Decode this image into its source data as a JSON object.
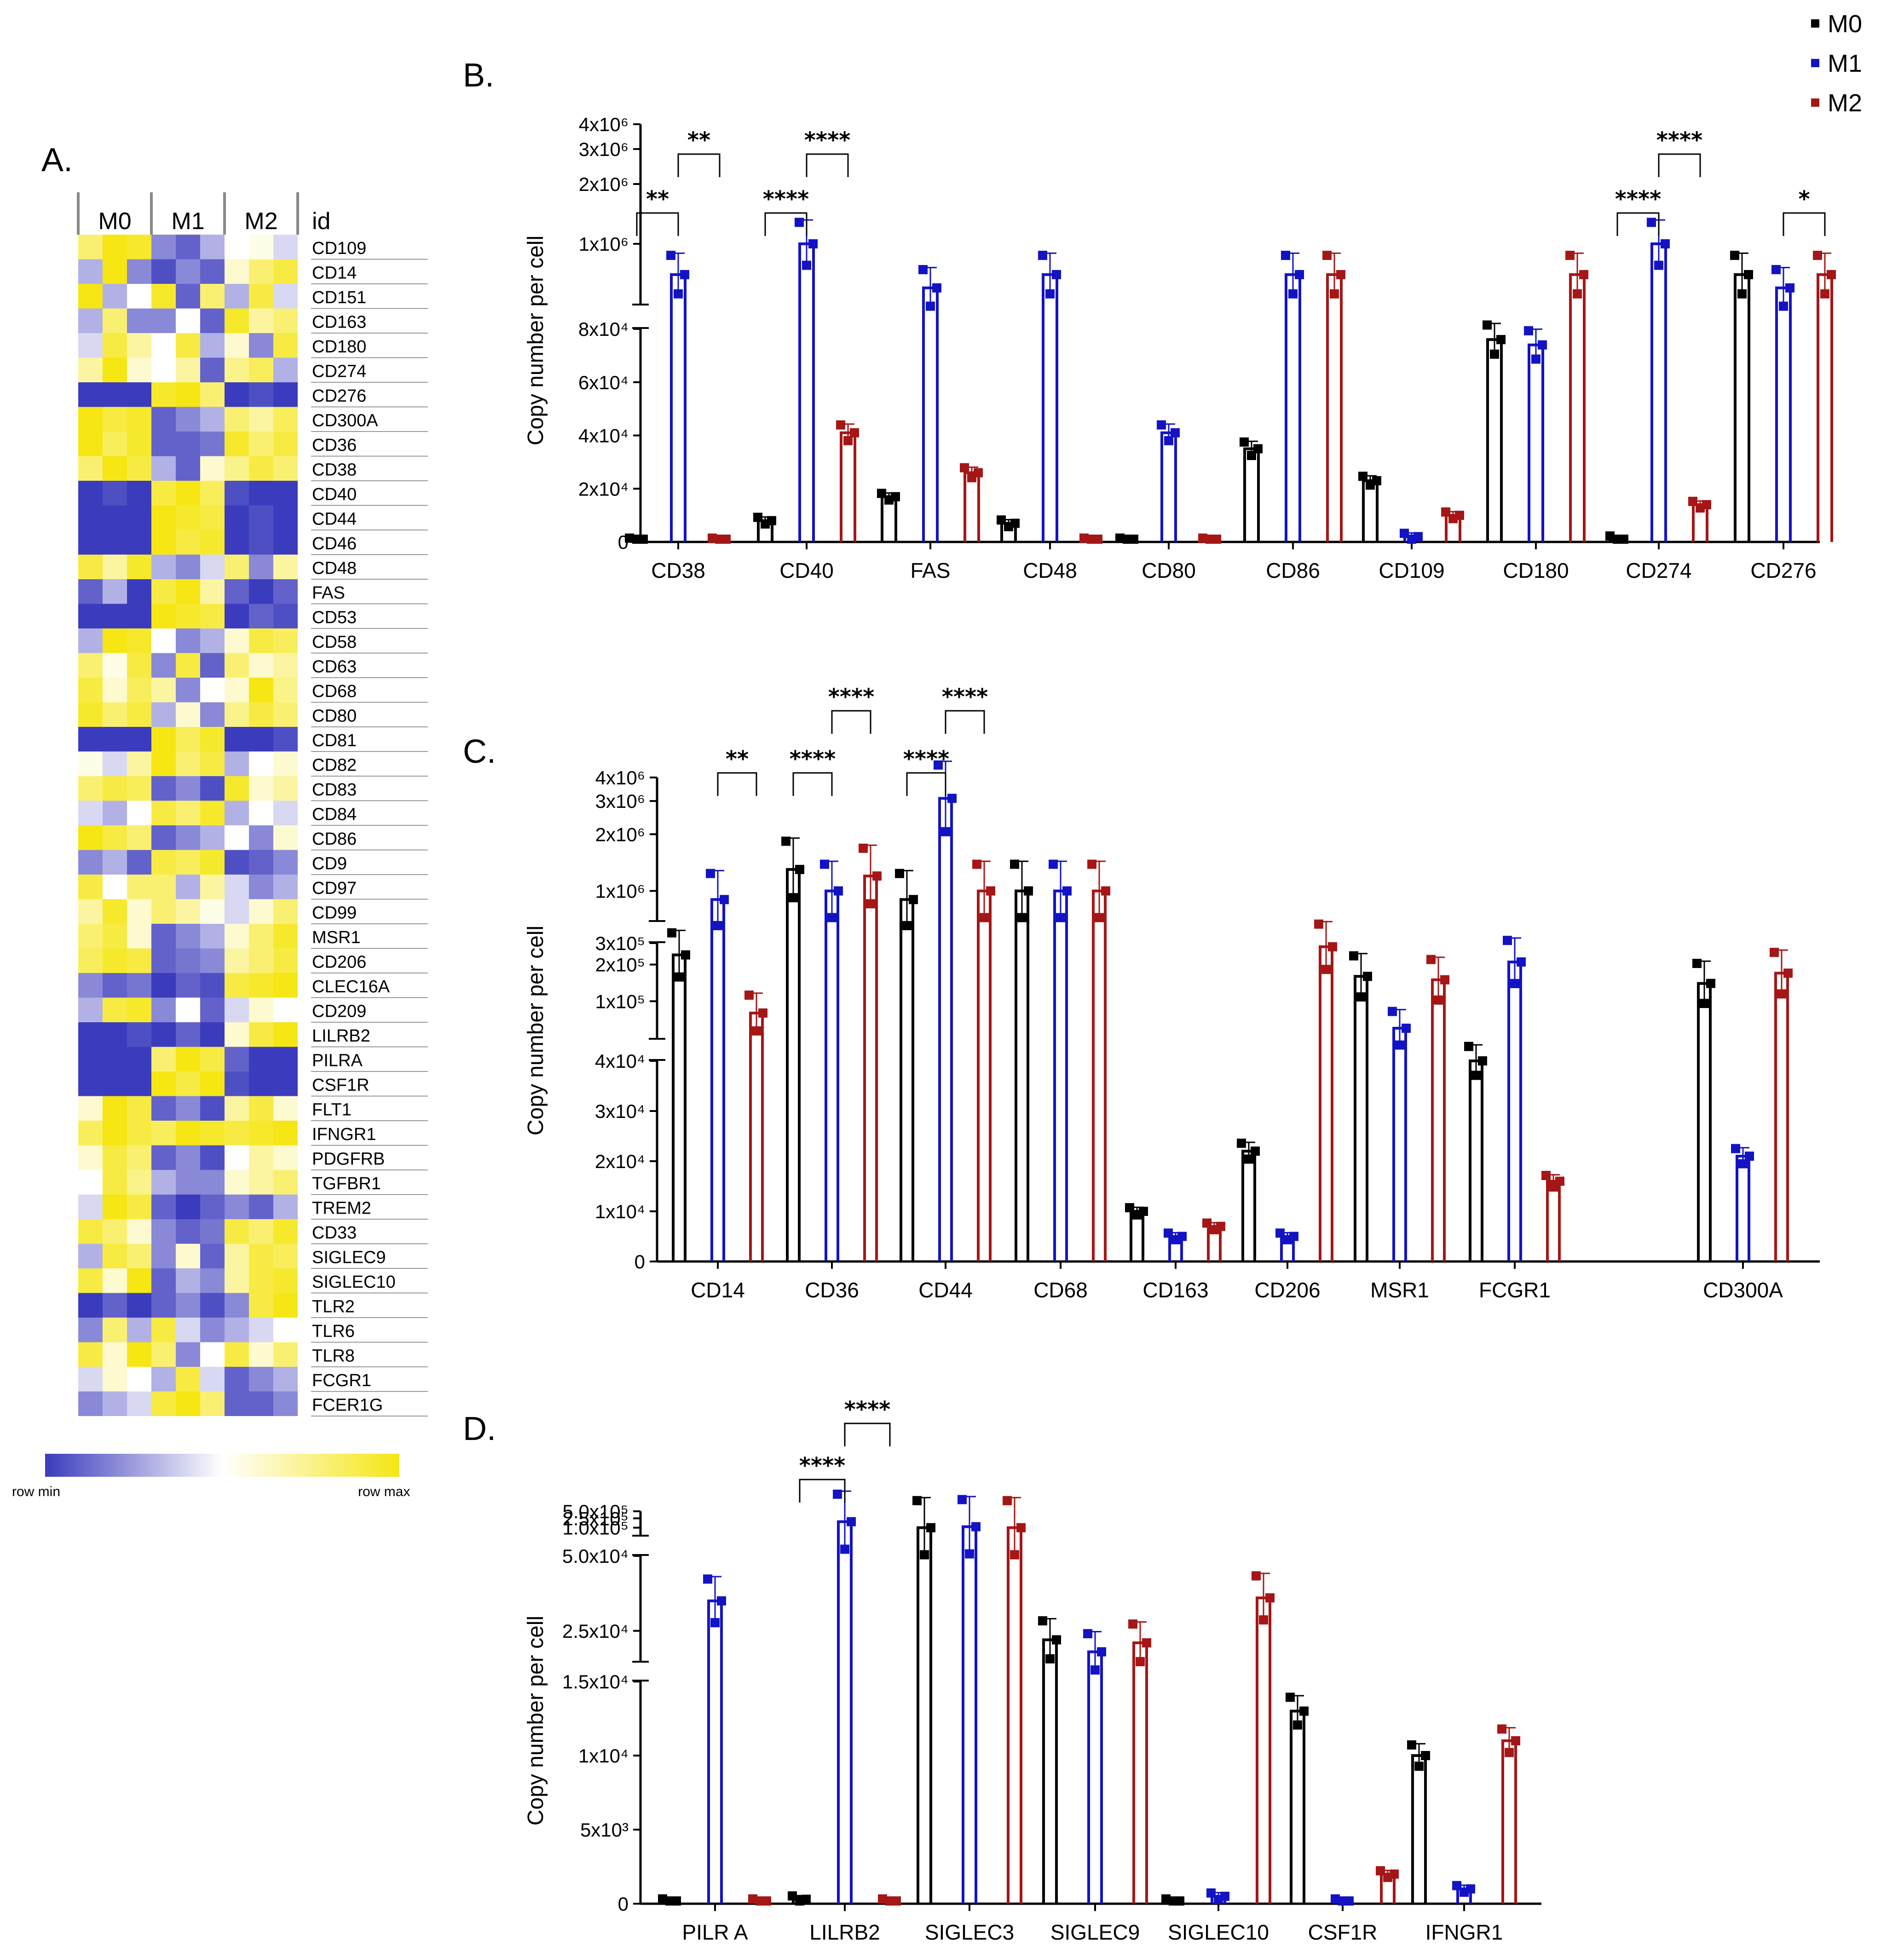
{
  "legend": [
    {
      "name": "M0",
      "color": "#000000"
    },
    {
      "name": "M1",
      "color": "#1313c4"
    },
    {
      "name": "M2",
      "color": "#a51616"
    }
  ],
  "heatmap": {
    "panel_label": "A.",
    "groups": [
      "M0",
      "M1",
      "M2"
    ],
    "id_header": "id",
    "legend_min": "row min",
    "legend_max": "row max",
    "colors": {
      "min": "#3b3bbd",
      "mid": "#ffffff",
      "max": "#f5e614"
    },
    "genes": [
      "CD109",
      "CD14",
      "CD151",
      "CD163",
      "CD180",
      "CD274",
      "CD276",
      "CD300A",
      "CD36",
      "CD38",
      "CD40",
      "CD44",
      "CD46",
      "CD48",
      "FAS",
      "CD53",
      "CD58",
      "CD63",
      "CD68",
      "CD80",
      "CD81",
      "CD82",
      "CD83",
      "CD84",
      "CD86",
      "CD9",
      "CD97",
      "CD99",
      "MSR1",
      "CD206",
      "CLEC16A",
      "CD209",
      "LILRB2",
      "PILRA",
      "CSF1R",
      "FLT1",
      "IFNGR1",
      "PDGFRB",
      "TGFBR1",
      "TREM2",
      "CD33",
      "SIGLEC9",
      "SIGLEC10",
      "TLR2",
      "TLR6",
      "TLR8",
      "FCGR1",
      "FCER1G"
    ],
    "values": [
      [
        0.8,
        1.0,
        0.95,
        0.2,
        0.1,
        0.3,
        0.5,
        0.55,
        0.4
      ],
      [
        0.3,
        1.0,
        0.2,
        0.05,
        0.2,
        0.1,
        0.6,
        0.8,
        0.9
      ],
      [
        1.0,
        0.3,
        0.5,
        0.95,
        0.1,
        0.8,
        0.3,
        0.9,
        0.4
      ],
      [
        0.3,
        0.8,
        0.2,
        0.2,
        0.5,
        0.1,
        0.95,
        0.7,
        0.8
      ],
      [
        0.4,
        0.9,
        0.7,
        0.5,
        0.9,
        0.3,
        0.6,
        0.2,
        0.9
      ],
      [
        0.7,
        1.0,
        0.6,
        0.5,
        0.7,
        0.1,
        0.75,
        0.85,
        0.3
      ],
      [
        0.0,
        0.0,
        0.0,
        0.95,
        1.0,
        0.8,
        0.0,
        0.05,
        0.0
      ],
      [
        1.0,
        0.9,
        0.95,
        0.1,
        0.2,
        0.3,
        0.8,
        0.7,
        0.85
      ],
      [
        1.0,
        0.85,
        0.95,
        0.1,
        0.1,
        0.15,
        0.95,
        0.8,
        0.9
      ],
      [
        0.8,
        1.0,
        0.9,
        0.3,
        0.1,
        0.6,
        0.75,
        0.9,
        0.8
      ],
      [
        0.0,
        0.05,
        0.0,
        0.9,
        1.0,
        0.85,
        0.05,
        0.0,
        0.0
      ],
      [
        0.0,
        0.0,
        0.0,
        1.0,
        0.95,
        0.9,
        0.0,
        0.05,
        0.0
      ],
      [
        0.0,
        0.0,
        0.0,
        1.0,
        0.9,
        0.95,
        0.0,
        0.05,
        0.0
      ],
      [
        0.9,
        0.7,
        0.95,
        0.3,
        0.2,
        0.4,
        0.8,
        0.2,
        0.7
      ],
      [
        0.1,
        0.3,
        0.0,
        0.9,
        1.0,
        0.7,
        0.1,
        0.0,
        0.1
      ],
      [
        0.0,
        0.0,
        0.0,
        1.0,
        0.95,
        0.9,
        0.0,
        0.1,
        0.05
      ],
      [
        0.3,
        1.0,
        0.95,
        0.5,
        0.2,
        0.3,
        0.6,
        0.9,
        0.85
      ],
      [
        0.8,
        0.55,
        0.9,
        0.2,
        0.9,
        0.1,
        0.8,
        0.6,
        0.7
      ],
      [
        0.9,
        0.6,
        0.85,
        0.7,
        0.2,
        0.5,
        0.6,
        1.0,
        0.75
      ],
      [
        0.95,
        0.8,
        0.9,
        0.3,
        0.6,
        0.2,
        0.75,
        0.9,
        0.8
      ],
      [
        0.0,
        0.0,
        0.0,
        1.0,
        0.85,
        0.95,
        0.0,
        0.0,
        0.05
      ],
      [
        0.55,
        0.4,
        0.7,
        1.0,
        0.8,
        0.9,
        0.3,
        0.5,
        0.6
      ],
      [
        0.8,
        0.9,
        0.85,
        0.1,
        0.2,
        0.05,
        0.95,
        0.6,
        0.7
      ],
      [
        0.4,
        0.3,
        0.5,
        0.9,
        0.8,
        0.95,
        0.3,
        0.5,
        0.4
      ],
      [
        1.0,
        0.9,
        0.8,
        0.1,
        0.2,
        0.3,
        0.5,
        0.2,
        0.6
      ],
      [
        0.2,
        0.3,
        0.1,
        0.9,
        0.85,
        0.95,
        0.05,
        0.1,
        0.2
      ],
      [
        0.9,
        0.5,
        0.8,
        0.8,
        0.3,
        0.7,
        0.4,
        0.2,
        0.3
      ],
      [
        0.7,
        0.95,
        0.6,
        0.8,
        0.7,
        0.55,
        0.4,
        0.6,
        0.8
      ],
      [
        0.8,
        0.9,
        0.6,
        0.1,
        0.2,
        0.3,
        0.6,
        0.8,
        0.95
      ],
      [
        0.85,
        0.95,
        0.9,
        0.1,
        0.15,
        0.2,
        0.7,
        0.8,
        0.9
      ],
      [
        0.2,
        0.1,
        0.15,
        0.0,
        0.1,
        0.05,
        0.9,
        0.95,
        1.0
      ],
      [
        0.3,
        0.9,
        0.95,
        0.2,
        0.5,
        0.1,
        0.4,
        0.6,
        0.5
      ],
      [
        0.0,
        0.0,
        0.05,
        0.0,
        0.1,
        0.0,
        0.6,
        0.9,
        1.0
      ],
      [
        0.0,
        0.0,
        0.0,
        0.8,
        1.0,
        0.9,
        0.1,
        0.0,
        0.0
      ],
      [
        0.0,
        0.0,
        0.0,
        1.0,
        0.9,
        1.0,
        0.05,
        0.0,
        0.0
      ],
      [
        0.6,
        1.0,
        0.9,
        0.1,
        0.2,
        0.05,
        0.7,
        0.9,
        0.6
      ],
      [
        0.85,
        1.0,
        0.9,
        0.85,
        1.0,
        0.95,
        0.9,
        0.95,
        1.0
      ],
      [
        0.6,
        0.9,
        0.8,
        0.1,
        0.2,
        0.05,
        0.5,
        0.7,
        0.6
      ],
      [
        0.5,
        0.9,
        0.75,
        0.3,
        0.2,
        0.2,
        0.6,
        0.7,
        0.8
      ],
      [
        0.4,
        1.0,
        0.9,
        0.1,
        0.0,
        0.1,
        0.2,
        0.1,
        0.3
      ],
      [
        0.9,
        0.8,
        0.6,
        0.2,
        0.1,
        0.15,
        0.9,
        0.8,
        0.95
      ],
      [
        0.3,
        0.9,
        0.8,
        0.2,
        0.6,
        0.1,
        0.7,
        0.9,
        0.85
      ],
      [
        0.9,
        0.6,
        1.0,
        0.1,
        0.3,
        0.2,
        0.7,
        0.9,
        0.95
      ],
      [
        0.0,
        0.1,
        0.0,
        0.1,
        0.2,
        0.05,
        0.2,
        0.9,
        1.0
      ],
      [
        0.2,
        0.8,
        0.3,
        0.9,
        0.4,
        0.2,
        0.3,
        0.4,
        0.5
      ],
      [
        0.9,
        0.6,
        1.0,
        0.8,
        0.2,
        0.5,
        0.9,
        0.6,
        0.8
      ],
      [
        0.4,
        0.6,
        0.5,
        0.3,
        0.9,
        0.4,
        0.1,
        0.2,
        0.3
      ],
      [
        0.2,
        0.3,
        0.4,
        0.9,
        1.0,
        0.8,
        0.1,
        0.1,
        0.2
      ]
    ]
  },
  "chart_data": [
    {
      "panel": "B.",
      "type": "bar",
      "ylabel": "Copy number per cell",
      "yaxis_segments": [
        {
          "range": [
            0,
            80000
          ],
          "ticks": [
            "0",
            "2x10⁴",
            "4x10⁴",
            "6x10⁴",
            "8x10⁴"
          ],
          "tick_values": [
            0,
            20000,
            40000,
            60000,
            80000
          ]
        },
        {
          "range": [
            500000,
            4000000
          ],
          "ticks": [
            "1x10⁶",
            "2x10⁶",
            "3x10⁶",
            "4x10⁶"
          ],
          "tick_values": [
            1000000,
            2000000,
            3000000,
            4000000
          ]
        }
      ],
      "categories": [
        "CD38",
        "CD40",
        "FAS",
        "CD48",
        "CD80",
        "CD86",
        "CD109",
        "CD180",
        "CD274",
        "CD276"
      ],
      "series": [
        {
          "name": "M0",
          "values": [
            200,
            8000,
            17000,
            7000,
            200,
            35000,
            23000,
            76000,
            1000,
            700000
          ]
        },
        {
          "name": "M1",
          "values": [
            700000,
            1000000,
            600000,
            700000,
            41000,
            700000,
            2000,
            74000,
            1000000,
            600000
          ]
        },
        {
          "name": "M2",
          "values": [
            200,
            41000,
            26000,
            200,
            200,
            700000,
            10000,
            700000,
            14000,
            700000
          ]
        }
      ],
      "significance": [
        {
          "cat": 0,
          "from": 0,
          "to": 1,
          "label": "**"
        },
        {
          "cat": 0,
          "from": 1,
          "to": 2,
          "label": "**"
        },
        {
          "cat": 1,
          "from": 0,
          "to": 1,
          "label": "****"
        },
        {
          "cat": 1,
          "from": 1,
          "to": 2,
          "label": "****"
        },
        {
          "cat": 8,
          "from": 0,
          "to": 1,
          "label": "****"
        },
        {
          "cat": 8,
          "from": 1,
          "to": 2,
          "label": "****"
        },
        {
          "cat": 9,
          "from": 1,
          "to": 2,
          "label": "*"
        }
      ]
    },
    {
      "panel": "C.",
      "type": "bar",
      "ylabel": "Copy number per cell",
      "yaxis_segments": [
        {
          "range": [
            0,
            40000
          ],
          "ticks": [
            "0",
            "1x10⁴",
            "2x10⁴",
            "3x10⁴",
            "4x10⁴"
          ],
          "tick_values": [
            0,
            10000,
            20000,
            30000,
            40000
          ]
        },
        {
          "range": [
            50000,
            300000
          ],
          "ticks": [
            "1x10⁵",
            "2x10⁵",
            "3x10⁵"
          ],
          "tick_values": [
            100000,
            200000,
            300000
          ]
        },
        {
          "range": [
            700000,
            4000000
          ],
          "ticks": [
            "1x10⁶",
            "2x10⁶",
            "3x10⁶",
            "4x10⁶"
          ],
          "tick_values": [
            1000000,
            2000000,
            3000000,
            4000000
          ]
        }
      ],
      "categories": [
        "CD14",
        "CD36",
        "CD44",
        "CD68",
        "CD163",
        "CD206",
        "MSR1",
        "FCGR1",
        "CD300A"
      ],
      "series": [
        {
          "name": "M0",
          "values": [
            240000,
            1300000,
            900000,
            1000000,
            10000,
            22000,
            160000,
            45000,
            140000
          ]
        },
        {
          "name": "M1",
          "values": [
            900000,
            1000000,
            3100000,
            1000000,
            5000,
            5000,
            60000,
            210000,
            21000
          ]
        },
        {
          "name": "M2",
          "values": [
            80000,
            1200000,
            1000000,
            1000000,
            7000,
            280000,
            150000,
            16000,
            170000
          ]
        }
      ],
      "significance": [
        {
          "cat": 0,
          "from": 1,
          "to": 2,
          "label": "**"
        },
        {
          "cat": 1,
          "from": 0,
          "to": 1,
          "label": "****"
        },
        {
          "cat": 1,
          "from": 1,
          "to": 2,
          "label": "****"
        },
        {
          "cat": 2,
          "from": 0,
          "to": 1,
          "label": "****"
        },
        {
          "cat": 2,
          "from": 1,
          "to": 2,
          "label": "****"
        }
      ]
    },
    {
      "panel": "D.",
      "type": "bar",
      "ylabel": "Copy number per cell",
      "yaxis_segments": [
        {
          "range": [
            0,
            15000
          ],
          "ticks": [
            "0",
            "5x10³",
            "1x10⁴",
            "1.5x10⁴"
          ],
          "tick_values": [
            0,
            5000,
            10000,
            15000
          ]
        },
        {
          "range": [
            15000,
            50000
          ],
          "ticks": [
            "2.5x10⁴",
            "5.0x10⁴"
          ],
          "tick_values": [
            25000,
            50000
          ]
        },
        {
          "range": [
            50000,
            500000
          ],
          "ticks": [
            "1.0x10⁵",
            "2.5x10⁵",
            "5.0x10⁵"
          ],
          "tick_values": [
            100000,
            250000,
            500000
          ]
        }
      ],
      "categories": [
        "PILR A",
        "LILRB2",
        "SIGLEC3",
        "SIGLEC9",
        "SIGLEC10",
        "CSF1R",
        "IFNGR1"
      ],
      "series": [
        {
          "name": "M0",
          "values": [
            100,
            300,
            100000,
            22000,
            100,
            13000,
            10000
          ]
        },
        {
          "name": "M1",
          "values": [
            35000,
            180000,
            110000,
            18000,
            500,
            100,
            1000
          ]
        },
        {
          "name": "M2",
          "values": [
            100,
            100,
            100000,
            21000,
            36000,
            2000,
            11000
          ]
        }
      ],
      "significance": [
        {
          "cat": 1,
          "from": 0,
          "to": 1,
          "label": "****"
        },
        {
          "cat": 1,
          "from": 1,
          "to": 2,
          "label": "****"
        }
      ]
    }
  ]
}
